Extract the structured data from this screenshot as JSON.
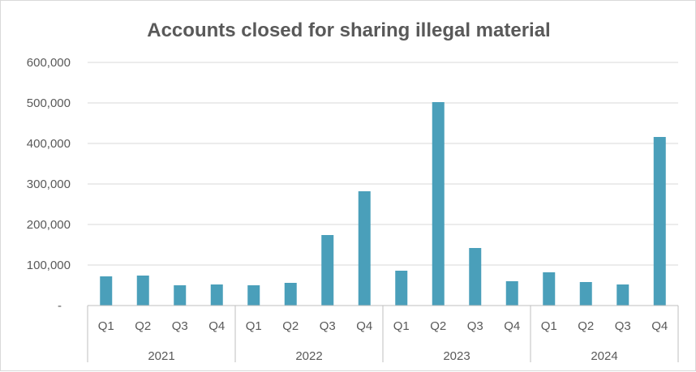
{
  "chart_data": {
    "type": "bar",
    "title": "Accounts closed for sharing illegal material",
    "xlabel": "",
    "ylabel": "",
    "ylim": [
      0,
      600000
    ],
    "yticks": [
      0,
      100000,
      200000,
      300000,
      400000,
      500000,
      600000
    ],
    "ytick_labels": [
      "-",
      "100,000",
      "200,000",
      "300,000",
      "400,000",
      "500,000",
      "600,000"
    ],
    "grid": true,
    "legend": "none",
    "bar_color": "#4a9fba",
    "groups": [
      {
        "label": "2021",
        "categories": [
          "Q1",
          "Q2",
          "Q3",
          "Q4"
        ]
      },
      {
        "label": "2022",
        "categories": [
          "Q1",
          "Q2",
          "Q3",
          "Q4"
        ]
      },
      {
        "label": "2023",
        "categories": [
          "Q1",
          "Q2",
          "Q3",
          "Q4"
        ]
      },
      {
        "label": "2024",
        "categories": [
          "Q1",
          "Q2",
          "Q3",
          "Q4"
        ]
      }
    ],
    "series": [
      {
        "values": [
          72000,
          74000,
          50000,
          52000,
          50000,
          56000,
          174000,
          282000,
          86000,
          502000,
          142000,
          60000,
          82000,
          58000,
          52000,
          416000
        ]
      }
    ]
  }
}
